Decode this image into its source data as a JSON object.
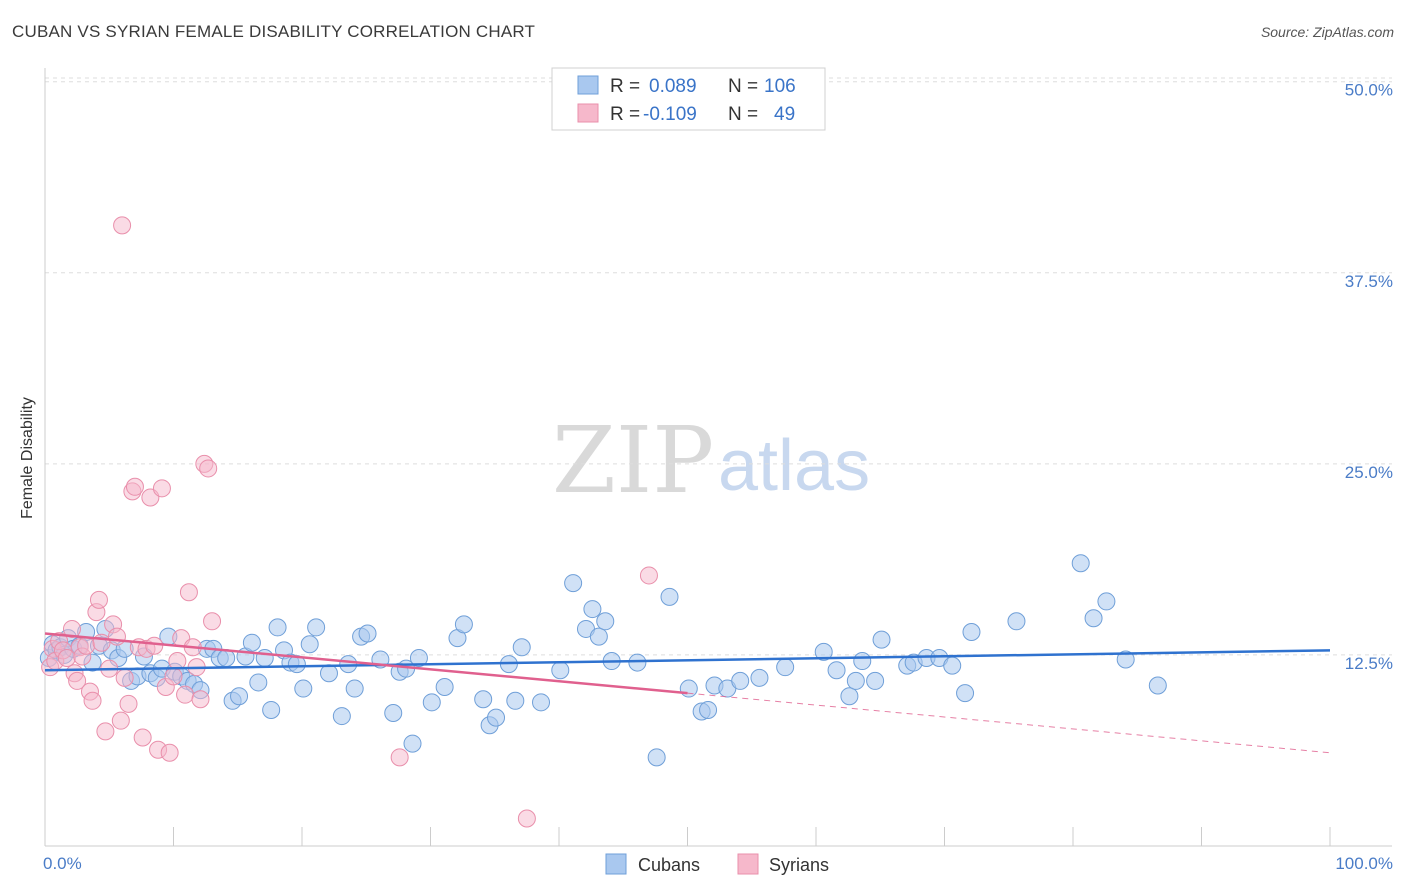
{
  "title": "CUBAN VS SYRIAN FEMALE DISABILITY CORRELATION CHART",
  "source": "Source: ZipAtlas.com",
  "watermark": {
    "zip": "ZIP",
    "atlas": "atlas"
  },
  "colors": {
    "cubans_fill": "#a9c8ef",
    "cubans_stroke": "#6f9fd8",
    "cubans_line": "#2f72cf",
    "syrians_fill": "#f6b8cb",
    "syrians_stroke": "#e98fab",
    "syrians_line": "#e0608e",
    "grid": "#dddddd",
    "axis_label": "#4a7cc7"
  },
  "legend": {
    "r_label": "R =",
    "n_label": "N =",
    "cubans": {
      "r": "0.089",
      "n": "106"
    },
    "syrians": {
      "r": "-0.109",
      "n": "49"
    }
  },
  "chart_data": {
    "type": "scatter",
    "title": "CUBAN VS SYRIAN FEMALE DISABILITY CORRELATION CHART",
    "xlabel": "",
    "ylabel": "Female Disability",
    "xlim": [
      0,
      100
    ],
    "ylim": [
      0,
      52.5
    ],
    "x_tick_labels": [
      "0.0%",
      "100.0%"
    ],
    "y_ticks": [
      12.5,
      25.0,
      37.5,
      50.0
    ],
    "y_tick_labels": [
      "12.5%",
      "25.0%",
      "37.5%",
      "50.0%"
    ],
    "grid": true,
    "legend_position": "top-center",
    "series": [
      {
        "name": "Cubans",
        "trend": {
          "x": [
            0,
            100
          ],
          "y": [
            11.5,
            12.8
          ]
        },
        "points": [
          [
            0.3,
            12.3
          ],
          [
            0.6,
            13.2
          ],
          [
            0.9,
            12.8
          ],
          [
            1.2,
            13.0
          ],
          [
            1.5,
            12.5
          ],
          [
            1.8,
            13.6
          ],
          [
            2.2,
            12.9
          ],
          [
            2.7,
            13.1
          ],
          [
            3.2,
            14.0
          ],
          [
            3.7,
            12.0
          ],
          [
            4.2,
            13.1
          ],
          [
            4.7,
            14.2
          ],
          [
            5.2,
            12.8
          ],
          [
            5.7,
            12.3
          ],
          [
            6.2,
            12.9
          ],
          [
            6.7,
            10.8
          ],
          [
            7.2,
            11.1
          ],
          [
            7.7,
            12.4
          ],
          [
            8.2,
            11.3
          ],
          [
            8.7,
            11.0
          ],
          [
            9.1,
            11.6
          ],
          [
            9.6,
            13.7
          ],
          [
            10.1,
            11.4
          ],
          [
            10.6,
            11.1
          ],
          [
            11.1,
            10.8
          ],
          [
            11.6,
            10.6
          ],
          [
            12.1,
            10.2
          ],
          [
            12.6,
            12.9
          ],
          [
            13.1,
            12.9
          ],
          [
            13.6,
            12.3
          ],
          [
            14.1,
            12.3
          ],
          [
            14.6,
            9.5
          ],
          [
            15.1,
            9.8
          ],
          [
            15.6,
            12.4
          ],
          [
            16.1,
            13.3
          ],
          [
            16.6,
            10.7
          ],
          [
            17.1,
            12.3
          ],
          [
            17.6,
            8.9
          ],
          [
            18.1,
            14.3
          ],
          [
            18.6,
            12.8
          ],
          [
            19.1,
            12.0
          ],
          [
            19.6,
            11.9
          ],
          [
            20.1,
            10.3
          ],
          [
            20.6,
            13.2
          ],
          [
            21.1,
            14.3
          ],
          [
            22.1,
            11.3
          ],
          [
            23.1,
            8.5
          ],
          [
            23.6,
            11.9
          ],
          [
            24.1,
            10.3
          ],
          [
            24.6,
            13.7
          ],
          [
            25.1,
            13.9
          ],
          [
            26.1,
            12.2
          ],
          [
            27.1,
            8.7
          ],
          [
            27.6,
            11.4
          ],
          [
            28.1,
            11.6
          ],
          [
            28.6,
            6.7
          ],
          [
            29.1,
            12.3
          ],
          [
            30.1,
            9.4
          ],
          [
            31.1,
            10.4
          ],
          [
            32.1,
            13.6
          ],
          [
            32.6,
            14.5
          ],
          [
            34.1,
            9.6
          ],
          [
            34.6,
            7.9
          ],
          [
            35.1,
            8.4
          ],
          [
            36.1,
            11.9
          ],
          [
            36.6,
            9.5
          ],
          [
            37.1,
            13.0
          ],
          [
            38.6,
            9.4
          ],
          [
            40.1,
            11.5
          ],
          [
            41.1,
            17.2
          ],
          [
            42.1,
            14.2
          ],
          [
            42.6,
            15.5
          ],
          [
            43.1,
            13.7
          ],
          [
            43.6,
            14.7
          ],
          [
            44.1,
            12.1
          ],
          [
            46.1,
            12.0
          ],
          [
            47.6,
            5.8
          ],
          [
            48.6,
            16.3
          ],
          [
            50.1,
            10.3
          ],
          [
            51.1,
            8.8
          ],
          [
            51.6,
            8.9
          ],
          [
            52.1,
            10.5
          ],
          [
            53.1,
            10.3
          ],
          [
            54.1,
            10.8
          ],
          [
            55.6,
            11.0
          ],
          [
            57.6,
            11.7
          ],
          [
            60.6,
            12.7
          ],
          [
            61.6,
            11.5
          ],
          [
            62.6,
            9.8
          ],
          [
            63.1,
            10.8
          ],
          [
            63.6,
            12.1
          ],
          [
            64.6,
            10.8
          ],
          [
            65.1,
            13.5
          ],
          [
            67.1,
            11.8
          ],
          [
            67.6,
            12.0
          ],
          [
            68.6,
            12.3
          ],
          [
            69.6,
            12.3
          ],
          [
            70.6,
            11.8
          ],
          [
            71.6,
            10.0
          ],
          [
            72.1,
            14.0
          ],
          [
            75.6,
            14.7
          ],
          [
            80.6,
            18.5
          ],
          [
            81.6,
            14.9
          ],
          [
            82.6,
            16.0
          ],
          [
            84.1,
            12.2
          ],
          [
            86.6,
            10.5
          ]
        ]
      },
      {
        "name": "Syrians",
        "trend": {
          "x": [
            0,
            50
          ],
          "y": [
            13.9,
            10.0
          ]
        },
        "trend_dashed": {
          "x": [
            50,
            100
          ],
          "y": [
            10.0,
            6.1
          ]
        },
        "points": [
          [
            0.4,
            11.7
          ],
          [
            0.6,
            12.9
          ],
          [
            0.8,
            12.1
          ],
          [
            1.1,
            13.4
          ],
          [
            1.4,
            12.8
          ],
          [
            1.7,
            12.3
          ],
          [
            2.1,
            14.2
          ],
          [
            2.3,
            11.3
          ],
          [
            2.5,
            10.8
          ],
          [
            2.7,
            13.0
          ],
          [
            2.9,
            12.4
          ],
          [
            3.2,
            13.1
          ],
          [
            3.5,
            10.1
          ],
          [
            3.7,
            9.5
          ],
          [
            4.0,
            15.3
          ],
          [
            4.2,
            16.1
          ],
          [
            4.4,
            13.3
          ],
          [
            4.7,
            7.5
          ],
          [
            5.0,
            11.6
          ],
          [
            5.3,
            14.5
          ],
          [
            5.6,
            13.7
          ],
          [
            5.9,
            8.2
          ],
          [
            6.2,
            11.0
          ],
          [
            6.5,
            9.3
          ],
          [
            6.8,
            23.2
          ],
          [
            7.0,
            23.5
          ],
          [
            7.3,
            13.0
          ],
          [
            7.6,
            7.1
          ],
          [
            7.9,
            12.9
          ],
          [
            8.2,
            22.8
          ],
          [
            8.5,
            13.1
          ],
          [
            8.8,
            6.3
          ],
          [
            9.1,
            23.4
          ],
          [
            9.4,
            10.4
          ],
          [
            9.7,
            6.1
          ],
          [
            10.0,
            11.1
          ],
          [
            10.3,
            12.1
          ],
          [
            10.6,
            13.6
          ],
          [
            10.9,
            9.9
          ],
          [
            11.2,
            16.6
          ],
          [
            11.5,
            13.0
          ],
          [
            11.8,
            11.7
          ],
          [
            12.1,
            9.6
          ],
          [
            12.4,
            25.0
          ],
          [
            12.7,
            24.7
          ],
          [
            13.0,
            14.7
          ],
          [
            27.6,
            5.8
          ],
          [
            37.5,
            1.8
          ],
          [
            47.0,
            17.7
          ]
        ],
        "note_points": [
          [
            6.0,
            40.6
          ]
        ]
      }
    ],
    "legend": [
      "Cubans",
      "Syrians"
    ]
  }
}
